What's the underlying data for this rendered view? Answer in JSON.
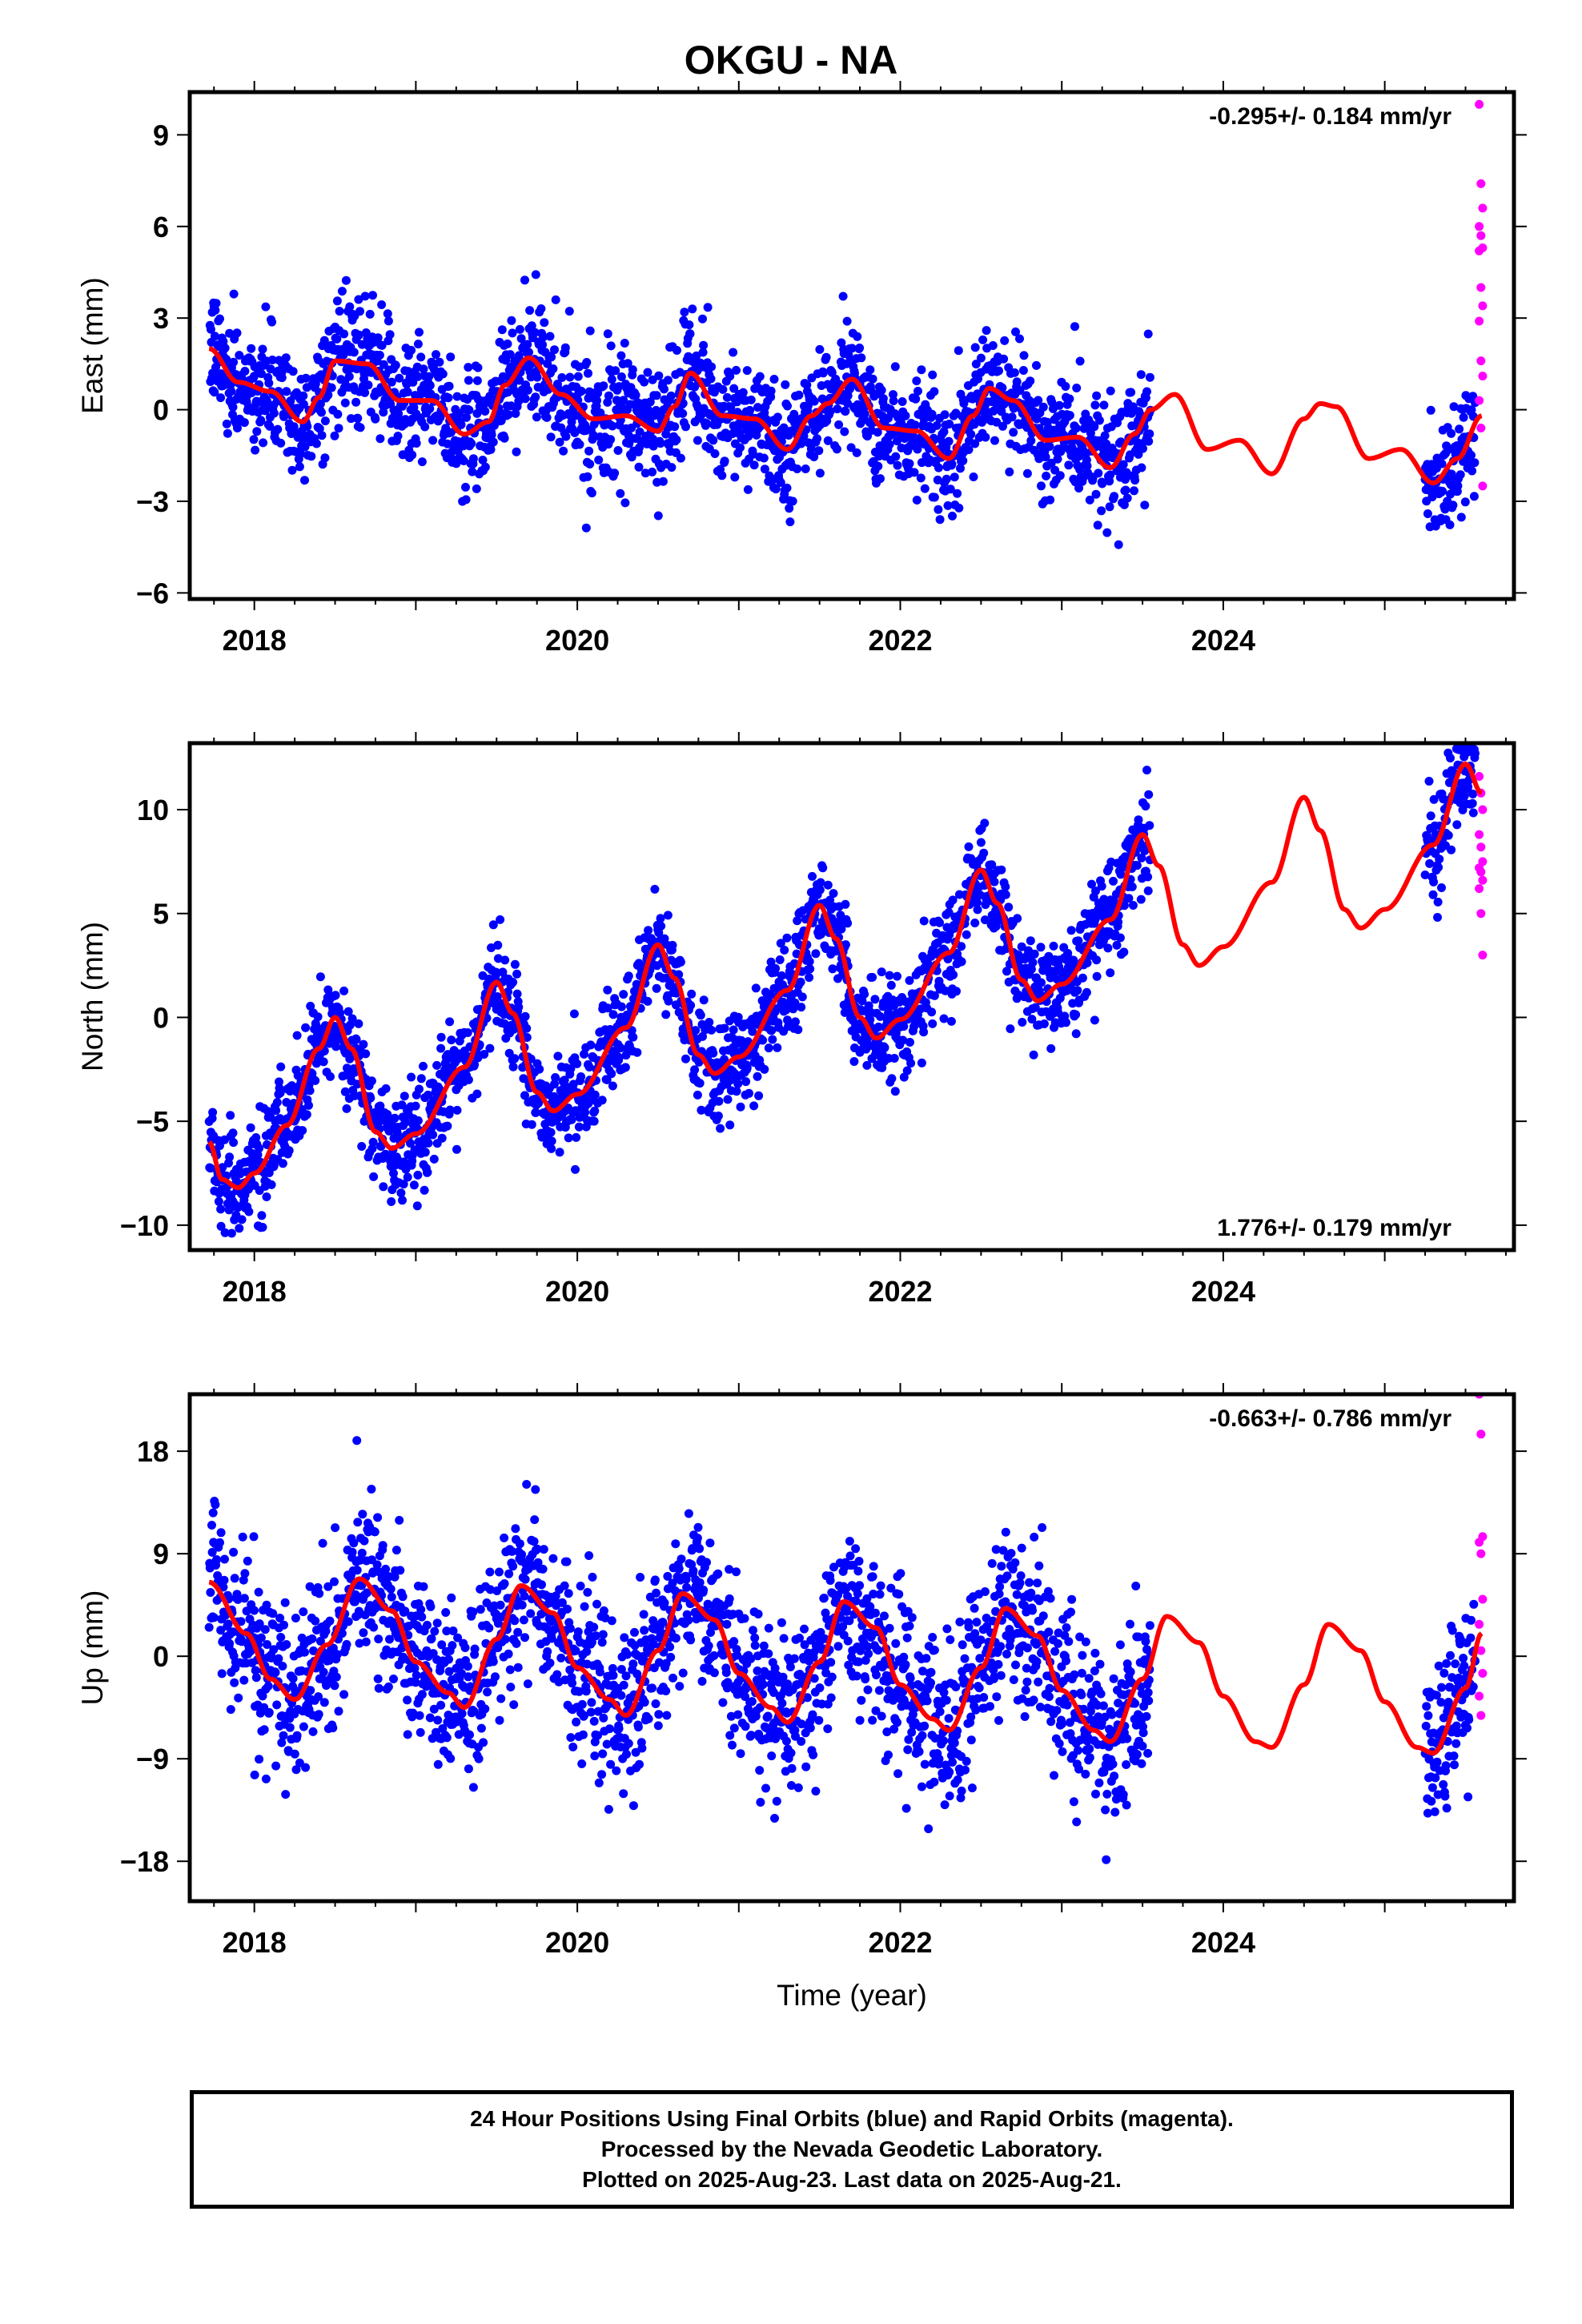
{
  "title": "OKGU - NA",
  "colors": {
    "final_orbits": "#0000ff",
    "rapid_orbits": "#ff00ff",
    "model_fit": "#ff0000",
    "axis": "#000000"
  },
  "footer": {
    "line1": "24 Hour Positions Using Final Orbits (blue) and Rapid Orbits (magenta).",
    "line2": "Processed by the Nevada Geodetic Laboratory.",
    "line3": "Plotted on 2025-Aug-23. Last data on 2025-Aug-21."
  },
  "chart_data": [
    {
      "type": "scatter",
      "component": "East",
      "ylabel": "East (mm)",
      "xlabel": "",
      "xlim": [
        2017.6,
        2025.8
      ],
      "ylim": [
        -6.2,
        10.4
      ],
      "xticks": [
        "2018",
        "2020",
        "2022",
        "2024"
      ],
      "yticks": [
        "-6",
        "-3",
        "0",
        "3",
        "6",
        "9"
      ],
      "rate_label": "-0.295+/- 0.184 mm/yr",
      "rate_position": "top-right",
      "final_data_ranges": [
        [
          2017.72,
          2023.55
        ],
        [
          2025.25,
          2025.56
        ]
      ],
      "rapid_data_range": [
        2025.57,
        2025.64
      ],
      "rapid_values": [
        10.0,
        7.4,
        6.6,
        6.0,
        5.7,
        5.3,
        5.2,
        4.0,
        3.4,
        2.9,
        1.6,
        1.1,
        0.3,
        -0.6,
        -2.5
      ],
      "series": [
        {
          "name": "Final Orbits",
          "color": "#0000ff"
        },
        {
          "name": "Rapid Orbits",
          "color": "#ff00ff"
        },
        {
          "name": "Model",
          "color": "#ff0000"
        }
      ],
      "model": {
        "x": [
          2017.72,
          2017.9,
          2018.1,
          2018.3,
          2018.4,
          2018.5,
          2018.7,
          2018.9,
          2019.1,
          2019.3,
          2019.45,
          2019.55,
          2019.7,
          2019.9,
          2020.1,
          2020.3,
          2020.5,
          2020.6,
          2020.7,
          2020.9,
          2021.1,
          2021.3,
          2021.45,
          2021.55,
          2021.7,
          2021.9,
          2022.1,
          2022.3,
          2022.45,
          2022.55,
          2022.7,
          2022.9,
          2023.1,
          2023.3,
          2023.45,
          2023.55,
          2023.7,
          2023.9,
          2024.1,
          2024.3,
          2024.5,
          2024.6,
          2024.7,
          2024.9,
          2025.1,
          2025.3,
          2025.45,
          2025.6
        ],
        "y": [
          2.0,
          0.9,
          0.6,
          -0.4,
          0.4,
          1.6,
          1.5,
          0.3,
          0.3,
          -0.8,
          -0.4,
          0.8,
          1.7,
          0.5,
          -0.3,
          -0.2,
          -0.7,
          0.1,
          1.2,
          -0.2,
          -0.3,
          -1.3,
          -0.2,
          0.2,
          1.0,
          -0.6,
          -0.7,
          -1.6,
          -0.2,
          0.7,
          0.3,
          -1.0,
          -0.9,
          -1.9,
          -0.8,
          0.0,
          0.5,
          -1.3,
          -1.0,
          -2.1,
          -0.3,
          0.2,
          0.1,
          -1.6,
          -1.3,
          -2.4,
          -1.6,
          -0.2
        ]
      }
    },
    {
      "type": "scatter",
      "component": "North",
      "ylabel": "North (mm)",
      "xlabel": "",
      "xlim": [
        2017.6,
        2025.8
      ],
      "ylim": [
        -11.2,
        13.2
      ],
      "xticks": [
        "2018",
        "2020",
        "2022",
        "2024"
      ],
      "yticks": [
        "-10",
        "-5",
        "0",
        "5",
        "10"
      ],
      "rate_label": "1.776+/- 0.179 mm/yr",
      "rate_position": "bottom-right",
      "final_data_ranges": [
        [
          2017.72,
          2023.55
        ],
        [
          2025.25,
          2025.56
        ]
      ],
      "rapid_data_range": [
        2025.57,
        2025.64
      ],
      "rapid_values": [
        11.6,
        10.8,
        10.0,
        8.8,
        8.2,
        7.5,
        7.2,
        7.0,
        6.6,
        6.2,
        5.0,
        3.0
      ],
      "series": [
        {
          "name": "Final Orbits",
          "color": "#0000ff"
        },
        {
          "name": "Rapid Orbits",
          "color": "#ff00ff"
        },
        {
          "name": "Model",
          "color": "#ff0000"
        }
      ],
      "model": {
        "x": [
          2017.72,
          2017.8,
          2017.9,
          2018.0,
          2018.2,
          2018.4,
          2018.5,
          2018.6,
          2018.75,
          2018.85,
          2019.0,
          2019.3,
          2019.5,
          2019.6,
          2019.75,
          2019.85,
          2020.0,
          2020.3,
          2020.5,
          2020.6,
          2020.75,
          2020.85,
          2021.0,
          2021.3,
          2021.5,
          2021.6,
          2021.75,
          2021.85,
          2022.0,
          2022.3,
          2022.5,
          2022.6,
          2022.75,
          2022.85,
          2023.0,
          2023.3,
          2023.5,
          2023.6,
          2023.75,
          2023.85,
          2024.0,
          2024.3,
          2024.5,
          2024.6,
          2024.75,
          2024.85,
          2025.0,
          2025.3,
          2025.5,
          2025.6
        ],
        "y": [
          -6.0,
          -7.8,
          -8.2,
          -7.5,
          -5.2,
          -1.5,
          0.0,
          -1.5,
          -5.5,
          -6.3,
          -5.6,
          -2.4,
          1.7,
          0.2,
          -3.6,
          -4.5,
          -3.7,
          -0.5,
          3.5,
          1.9,
          -1.8,
          -2.7,
          -1.9,
          1.3,
          5.4,
          3.8,
          0.0,
          -1.0,
          -0.1,
          3.1,
          7.1,
          5.5,
          1.8,
          0.8,
          1.6,
          4.7,
          8.8,
          7.3,
          3.5,
          2.5,
          3.4,
          6.5,
          10.6,
          9.0,
          5.2,
          4.3,
          5.2,
          8.3,
          12.2,
          10.8
        ]
      }
    },
    {
      "type": "scatter",
      "component": "Up",
      "ylabel": "Up (mm)",
      "xlabel": "Time (year)",
      "xlim": [
        2017.6,
        2025.8
      ],
      "ylim": [
        -21.5,
        23.0
      ],
      "xticks": [
        "2018",
        "2020",
        "2022",
        "2024"
      ],
      "yticks": [
        "-18",
        "-9",
        "0",
        "9",
        "18"
      ],
      "rate_label": "-0.663+/- 0.786 mm/yr",
      "rate_position": "top-right",
      "final_data_ranges": [
        [
          2017.72,
          2023.55
        ],
        [
          2025.25,
          2025.56
        ]
      ],
      "rapid_data_range": [
        2025.57,
        2025.64
      ],
      "rapid_values": [
        23.0,
        19.5,
        10.5,
        10.0,
        9.0,
        5.0,
        2.8,
        0.5,
        -1.5,
        -3.5,
        -5.2
      ],
      "series": [
        {
          "name": "Final Orbits",
          "color": "#0000ff"
        },
        {
          "name": "Rapid Orbits",
          "color": "#ff00ff"
        },
        {
          "name": "Model",
          "color": "#ff0000"
        }
      ],
      "model": {
        "x": [
          2017.72,
          2017.95,
          2018.1,
          2018.25,
          2018.45,
          2018.65,
          2018.85,
          2019.0,
          2019.2,
          2019.3,
          2019.5,
          2019.65,
          2019.85,
          2020.0,
          2020.2,
          2020.3,
          2020.5,
          2020.65,
          2020.85,
          2021.0,
          2021.2,
          2021.3,
          2021.5,
          2021.65,
          2021.85,
          2022.0,
          2022.2,
          2022.3,
          2022.5,
          2022.65,
          2022.85,
          2023.0,
          2023.2,
          2023.3,
          2023.5,
          2023.65,
          2023.85,
          2024.0,
          2024.2,
          2024.3,
          2024.5,
          2024.65,
          2024.85,
          2025.0,
          2025.2,
          2025.3,
          2025.5,
          2025.6
        ],
        "y": [
          6.5,
          2.0,
          -2.0,
          -3.8,
          1.0,
          6.8,
          4.0,
          -0.5,
          -3.2,
          -4.5,
          1.5,
          6.2,
          3.8,
          -1.0,
          -3.8,
          -5.2,
          0.5,
          5.5,
          3.2,
          -1.5,
          -4.5,
          -5.8,
          -0.5,
          4.8,
          2.5,
          -2.5,
          -5.5,
          -6.5,
          -1.0,
          4.2,
          1.8,
          -3.0,
          -6.5,
          -7.5,
          -2.0,
          3.5,
          1.2,
          -3.5,
          -7.5,
          -8.0,
          -2.5,
          2.8,
          0.5,
          -4.0,
          -8.0,
          -8.5,
          -2.8,
          2.0
        ]
      }
    }
  ]
}
